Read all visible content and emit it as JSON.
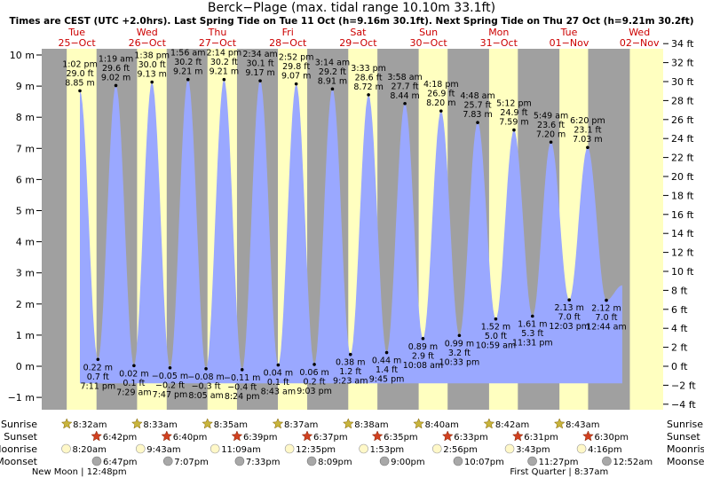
{
  "title": "Berck−Plage (max. tidal range 10.10m 33.1ft)",
  "subtitle": "Times are CEST (UTC +2.0hrs). Last Spring Tide on Tue 11 Oct (h=9.16m 30.1ft). Next Spring Tide on Thu 27 Oct (h=9.21m 30.2ft)",
  "colors": {
    "tide": "#9aa8ff",
    "day": "#ffffc0",
    "night": "#a0a0a0",
    "day_label": "#cc0000",
    "sun_rise": "#c8b43c",
    "sun_set": "#d04020",
    "moon_rise": "#fff8c8",
    "moon_set": "#a8a8a8"
  },
  "chart_data": {
    "type": "area",
    "title": "Berck−Plage (max. tidal range 10.10m 33.1ft)",
    "ylim_m": [
      -1.5,
      10.6
    ],
    "ylim_ft": [
      -5,
      35
    ],
    "y_ticks_m": [
      "−1 m",
      "0 m",
      "1 m",
      "2 m",
      "3 m",
      "4 m",
      "5 m",
      "6 m",
      "7 m",
      "8 m",
      "9 m",
      "10 m"
    ],
    "y_ticks_ft": [
      "−4 ft",
      "−2 ft",
      "0 ft",
      "2 ft",
      "4 ft",
      "6 ft",
      "8 ft",
      "10 ft",
      "12 ft",
      "14 ft",
      "16 ft",
      "18 ft",
      "20 ft",
      "22 ft",
      "24 ft",
      "26 ft",
      "28 ft",
      "30 ft",
      "32 ft",
      "34 ft"
    ],
    "days": [
      {
        "dow": "Tue",
        "date": "25−Oct"
      },
      {
        "dow": "Wed",
        "date": "26−Oct"
      },
      {
        "dow": "Thu",
        "date": "27−Oct"
      },
      {
        "dow": "Fri",
        "date": "28−Oct"
      },
      {
        "dow": "Sat",
        "date": "29−Oct"
      },
      {
        "dow": "Sun",
        "date": "30−Oct"
      },
      {
        "dow": "Mon",
        "date": "31−Oct"
      },
      {
        "dow": "Tue",
        "date": "01−Nov"
      },
      {
        "dow": "Wed",
        "date": "02−Nov"
      }
    ],
    "tides": [
      {
        "d": 0,
        "t": "1:02 pm",
        "m": 8.85,
        "ft": "29.0 ft",
        "ml": "8.85 m",
        "hi": true
      },
      {
        "d": 0,
        "t": "7:11 pm",
        "m": 0.22,
        "ft": "0.7 ft",
        "ml": "0.22 m",
        "hi": false
      },
      {
        "d": 1,
        "t": "1:19 am",
        "m": 9.02,
        "ft": "29.6 ft",
        "ml": "9.02 m",
        "hi": true
      },
      {
        "d": 1,
        "t": "7:29 am",
        "m": 0.02,
        "ft": "0.1 ft",
        "ml": "0.02 m",
        "hi": false
      },
      {
        "d": 1,
        "t": "1:38 pm",
        "m": 9.13,
        "ft": "30.0 ft",
        "ml": "9.13 m",
        "hi": true
      },
      {
        "d": 1,
        "t": "7:47 pm",
        "m": -0.05,
        "ft": "−0.2 ft",
        "ml": "−0.05 m",
        "hi": false
      },
      {
        "d": 2,
        "t": "1:56 am",
        "m": 9.21,
        "ft": "30.2 ft",
        "ml": "9.21 m",
        "hi": true
      },
      {
        "d": 2,
        "t": "8:05 am",
        "m": -0.08,
        "ft": "−0.3 ft",
        "ml": "−0.08 m",
        "hi": false
      },
      {
        "d": 2,
        "t": "2:14 pm",
        "m": 9.21,
        "ft": "30.2 ft",
        "ml": "9.21 m",
        "hi": true
      },
      {
        "d": 2,
        "t": "8:24 pm",
        "m": -0.11,
        "ft": "−0.4 ft",
        "ml": "−0.11 m",
        "hi": false
      },
      {
        "d": 3,
        "t": "2:34 am",
        "m": 9.17,
        "ft": "30.1 ft",
        "ml": "9.17 m",
        "hi": true
      },
      {
        "d": 3,
        "t": "8:43 am",
        "m": 0.04,
        "ft": "0.1 ft",
        "ml": "0.04 m",
        "hi": false
      },
      {
        "d": 3,
        "t": "2:52 pm",
        "m": 9.07,
        "ft": "29.8 ft",
        "ml": "9.07 m",
        "hi": true
      },
      {
        "d": 3,
        "t": "9:03 pm",
        "m": 0.06,
        "ft": "0.2 ft",
        "ml": "0.06 m",
        "hi": false
      },
      {
        "d": 4,
        "t": "3:14 am",
        "m": 8.91,
        "ft": "29.2 ft",
        "ml": "8.91 m",
        "hi": true
      },
      {
        "d": 4,
        "t": "9:23 am",
        "m": 0.38,
        "ft": "1.2 ft",
        "ml": "0.38 m",
        "hi": false
      },
      {
        "d": 4,
        "t": "3:33 pm",
        "m": 8.72,
        "ft": "28.6 ft",
        "ml": "8.72 m",
        "hi": true
      },
      {
        "d": 4,
        "t": "9:45 pm",
        "m": 0.44,
        "ft": "1.4 ft",
        "ml": "0.44 m",
        "hi": false
      },
      {
        "d": 5,
        "t": "3:58 am",
        "m": 8.44,
        "ft": "27.7 ft",
        "ml": "8.44 m",
        "hi": true
      },
      {
        "d": 5,
        "t": "10:08 am",
        "m": 0.89,
        "ft": "2.9 ft",
        "ml": "0.89 m",
        "hi": false
      },
      {
        "d": 5,
        "t": "4:18 pm",
        "m": 8.2,
        "ft": "26.9 ft",
        "ml": "8.20 m",
        "hi": true
      },
      {
        "d": 5,
        "t": "10:33 pm",
        "m": 0.99,
        "ft": "3.2 ft",
        "ml": "0.99 m",
        "hi": false
      },
      {
        "d": 6,
        "t": "4:48 am",
        "m": 7.83,
        "ft": "25.7 ft",
        "ml": "7.83 m",
        "hi": true
      },
      {
        "d": 6,
        "t": "10:59 am",
        "m": 1.52,
        "ft": "5.0 ft",
        "ml": "1.52 m",
        "hi": false
      },
      {
        "d": 6,
        "t": "5:12 pm",
        "m": 7.59,
        "ft": "24.9 ft",
        "ml": "7.59 m",
        "hi": true
      },
      {
        "d": 6,
        "t": "11:31 pm",
        "m": 1.61,
        "ft": "5.3 ft",
        "ml": "1.61 m",
        "hi": false
      },
      {
        "d": 7,
        "t": "5:49 am",
        "m": 7.2,
        "ft": "23.6 ft",
        "ml": "7.20 m",
        "hi": true
      },
      {
        "d": 7,
        "t": "12:03 pm",
        "m": 2.13,
        "ft": "7.0 ft",
        "ml": "2.13 m",
        "hi": false
      },
      {
        "d": 7,
        "t": "6:20 pm",
        "m": 7.03,
        "ft": "23.1 ft",
        "ml": "7.03 m",
        "hi": true
      },
      {
        "d": 8,
        "t": "12:44 am",
        "m": 2.12,
        "ft": "7.0 ft",
        "ml": "2.12 m",
        "hi": false
      }
    ],
    "sun": [
      {
        "d": 0,
        "rise": "8:32am",
        "set": "6:42pm"
      },
      {
        "d": 1,
        "rise": "8:33am",
        "set": "6:40pm"
      },
      {
        "d": 2,
        "rise": "8:35am",
        "set": "6:39pm"
      },
      {
        "d": 3,
        "rise": "8:37am",
        "set": "6:37pm"
      },
      {
        "d": 4,
        "rise": "8:38am",
        "set": "6:35pm"
      },
      {
        "d": 5,
        "rise": "8:40am",
        "set": "6:33pm"
      },
      {
        "d": 6,
        "rise": "8:42am",
        "set": "6:31pm"
      },
      {
        "d": 7,
        "rise": "8:43am",
        "set": "6:30pm"
      }
    ],
    "moonrise": [
      {
        "d": 0,
        "t": "8:20am"
      },
      {
        "d": 1,
        "t": "9:43am"
      },
      {
        "d": 2,
        "t": "11:09am"
      },
      {
        "d": 3,
        "t": "12:35pm"
      },
      {
        "d": 4,
        "t": "1:53pm"
      },
      {
        "d": 5,
        "t": "2:56pm"
      },
      {
        "d": 6,
        "t": "3:43pm"
      },
      {
        "d": 7,
        "t": "4:16pm"
      }
    ],
    "moonset": [
      {
        "d": 0,
        "t": "6:47pm"
      },
      {
        "d": 1,
        "t": "7:07pm"
      },
      {
        "d": 2,
        "t": "7:33pm"
      },
      {
        "d": 3,
        "t": "8:09pm"
      },
      {
        "d": 4,
        "t": "9:00pm"
      },
      {
        "d": 5,
        "t": "10:07pm"
      },
      {
        "d": 6,
        "t": "11:27pm"
      },
      {
        "d": 8,
        "t": "12:52am"
      }
    ],
    "row_labels": [
      "Sunrise",
      "Sunset",
      "Moonrise",
      "Moonset"
    ],
    "moon_phases": [
      {
        "label": "New Moon",
        "t": "12:48pm",
        "d": 0,
        "hour": 12.8
      },
      {
        "label": "First Quarter",
        "t": "8:37am",
        "d": 7,
        "hour": 8.62
      }
    ]
  }
}
